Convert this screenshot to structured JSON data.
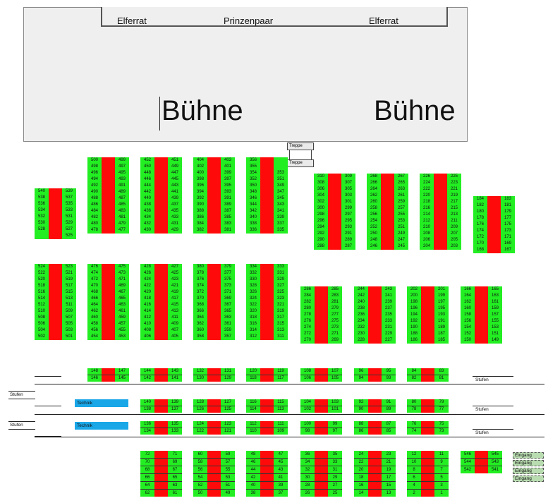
{
  "stage": {
    "elferrat_left": "Elferrat",
    "prinzenpaar": "Prinzenpaar",
    "elferrat_right": "Elferrat",
    "buehne_left": "Bühne",
    "buehne_right": "Bühne"
  },
  "stairs": [
    "Treppe",
    "Treppe"
  ],
  "labels": {
    "stufen": "Stufen",
    "technik": "Technik",
    "eingang": "Eingang"
  },
  "tables": [
    {
      "name": "500",
      "left": [
        500,
        498,
        496,
        494,
        492,
        490,
        488,
        486,
        484,
        482,
        480,
        478
      ],
      "right": [
        499,
        497,
        495,
        493,
        491,
        489,
        487,
        485,
        483,
        481,
        479,
        477
      ]
    },
    {
      "name": "452",
      "left": [
        452,
        450,
        448,
        446,
        444,
        442,
        440,
        438,
        436,
        434,
        432,
        430
      ],
      "right": [
        451,
        449,
        447,
        445,
        443,
        441,
        439,
        437,
        435,
        433,
        431,
        429
      ]
    },
    {
      "name": "404",
      "left": [
        404,
        402,
        400,
        398,
        396,
        394,
        392,
        390,
        388,
        386,
        384,
        382
      ],
      "right": [
        403,
        401,
        399,
        397,
        395,
        393,
        391,
        389,
        387,
        385,
        383,
        381
      ]
    },
    {
      "name": "356",
      "left": [
        356,
        355,
        354,
        352,
        350,
        348,
        346,
        344,
        342,
        340,
        338,
        336
      ],
      "right": [
        "",
        "",
        353,
        351,
        349,
        347,
        345,
        343,
        341,
        339,
        337,
        335
      ]
    },
    {
      "name": "540",
      "left": [
        540,
        538,
        536,
        534,
        532,
        530,
        528
      ],
      "right": [
        539,
        537,
        535,
        533,
        531,
        529,
        527,
        525
      ]
    },
    {
      "name": "310",
      "left": [
        310,
        308,
        306,
        304,
        302,
        300,
        298,
        296,
        294,
        292,
        290,
        288
      ],
      "right": [
        309,
        307,
        305,
        303,
        301,
        299,
        297,
        295,
        293,
        291,
        289,
        287
      ]
    },
    {
      "name": "268",
      "left": [
        268,
        266,
        264,
        262,
        260,
        258,
        256,
        254,
        252,
        250,
        248,
        246
      ],
      "right": [
        267,
        265,
        263,
        261,
        259,
        257,
        255,
        253,
        251,
        249,
        247,
        245
      ]
    },
    {
      "name": "226",
      "left": [
        226,
        224,
        222,
        220,
        218,
        216,
        214,
        212,
        210,
        208,
        206,
        204
      ],
      "right": [
        225,
        223,
        221,
        219,
        217,
        215,
        213,
        211,
        209,
        207,
        205,
        203
      ]
    },
    {
      "name": "184",
      "left": [
        184,
        182,
        180,
        178,
        176,
        174,
        172,
        170,
        168
      ],
      "right": [
        183,
        181,
        179,
        177,
        175,
        173,
        171,
        169,
        167
      ]
    },
    {
      "name": "524",
      "left": [
        524,
        522,
        520,
        518,
        516,
        514,
        512,
        510,
        508,
        506,
        504,
        502
      ],
      "right": [
        523,
        521,
        519,
        517,
        515,
        513,
        511,
        509,
        507,
        505,
        503,
        501
      ]
    },
    {
      "name": "476",
      "left": [
        476,
        474,
        472,
        470,
        468,
        466,
        464,
        462,
        460,
        458,
        456,
        454
      ],
      "right": [
        475,
        473,
        471,
        469,
        467,
        465,
        463,
        461,
        459,
        457,
        455,
        453
      ]
    },
    {
      "name": "428",
      "left": [
        428,
        426,
        424,
        422,
        420,
        418,
        416,
        414,
        412,
        410,
        408,
        406
      ],
      "right": [
        427,
        425,
        423,
        421,
        419,
        417,
        415,
        413,
        411,
        409,
        407,
        405
      ]
    },
    {
      "name": "380",
      "left": [
        380,
        378,
        376,
        374,
        372,
        370,
        368,
        366,
        364,
        362,
        360,
        358
      ],
      "right": [
        379,
        377,
        375,
        373,
        371,
        369,
        367,
        365,
        363,
        361,
        359,
        357
      ]
    },
    {
      "name": "334",
      "left": [
        334,
        332,
        330,
        328,
        326,
        324,
        322,
        320,
        318,
        316,
        314,
        312
      ],
      "right": [
        333,
        331,
        329,
        327,
        325,
        323,
        321,
        319,
        317,
        315,
        313,
        311
      ]
    },
    {
      "name": "286",
      "left": [
        286,
        284,
        282,
        280,
        278,
        276,
        274,
        272,
        270
      ],
      "right": [
        285,
        283,
        281,
        279,
        277,
        275,
        273,
        271,
        269
      ]
    },
    {
      "name": "244",
      "left": [
        244,
        242,
        240,
        238,
        236,
        234,
        232,
        230,
        228
      ],
      "right": [
        243,
        241,
        239,
        237,
        235,
        233,
        231,
        229,
        227
      ]
    },
    {
      "name": "202",
      "left": [
        202,
        200,
        198,
        196,
        194,
        192,
        190,
        188,
        186
      ],
      "right": [
        201,
        199,
        197,
        195,
        193,
        191,
        189,
        187,
        185
      ]
    },
    {
      "name": "166",
      "left": [
        166,
        164,
        162,
        160,
        158,
        156,
        154,
        152,
        150
      ],
      "right": [
        165,
        163,
        161,
        159,
        157,
        155,
        153,
        151,
        149
      ]
    },
    {
      "name": "148",
      "left": [
        148,
        146
      ],
      "right": [
        147,
        145
      ]
    },
    {
      "name": "144",
      "left": [
        144,
        142
      ],
      "right": [
        143,
        141
      ]
    },
    {
      "name": "132",
      "left": [
        132,
        130
      ],
      "right": [
        131,
        129
      ]
    },
    {
      "name": "120",
      "left": [
        120,
        118
      ],
      "right": [
        119,
        117
      ]
    },
    {
      "name": "108",
      "left": [
        108,
        106
      ],
      "right": [
        107,
        105
      ]
    },
    {
      "name": "96",
      "left": [
        96,
        94
      ],
      "right": [
        95,
        93
      ]
    },
    {
      "name": "84",
      "left": [
        84,
        82
      ],
      "right": [
        83,
        81
      ]
    },
    {
      "name": "140",
      "left": [
        140,
        138
      ],
      "right": [
        139,
        137
      ]
    },
    {
      "name": "128",
      "left": [
        128,
        126
      ],
      "right": [
        127,
        125
      ]
    },
    {
      "name": "116",
      "left": [
        116,
        114
      ],
      "right": [
        115,
        113
      ]
    },
    {
      "name": "104",
      "left": [
        104,
        102
      ],
      "right": [
        103,
        101
      ]
    },
    {
      "name": "92",
      "left": [
        92,
        90
      ],
      "right": [
        91,
        89
      ]
    },
    {
      "name": "80",
      "left": [
        80,
        78
      ],
      "right": [
        79,
        77
      ]
    },
    {
      "name": "136",
      "left": [
        136,
        134
      ],
      "right": [
        135,
        133
      ]
    },
    {
      "name": "124",
      "left": [
        124,
        122
      ],
      "right": [
        123,
        121
      ]
    },
    {
      "name": "112",
      "left": [
        112,
        110
      ],
      "right": [
        111,
        109
      ]
    },
    {
      "name": "100",
      "left": [
        100,
        98
      ],
      "right": [
        99,
        97
      ]
    },
    {
      "name": "88",
      "left": [
        88,
        86
      ],
      "right": [
        87,
        85
      ]
    },
    {
      "name": "76",
      "left": [
        76,
        74
      ],
      "right": [
        75,
        73
      ]
    },
    {
      "name": "72",
      "left": [
        72,
        70,
        68,
        66,
        64,
        62
      ],
      "right": [
        71,
        69,
        67,
        65,
        63,
        61
      ]
    },
    {
      "name": "60",
      "left": [
        60,
        58,
        56,
        54,
        52,
        50
      ],
      "right": [
        59,
        57,
        55,
        53,
        51,
        49
      ]
    },
    {
      "name": "48",
      "left": [
        48,
        46,
        44,
        42,
        40,
        38
      ],
      "right": [
        47,
        45,
        43,
        41,
        39,
        37
      ]
    },
    {
      "name": "36",
      "left": [
        36,
        34,
        32,
        30,
        28,
        26
      ],
      "right": [
        35,
        33,
        31,
        29,
        27,
        25
      ]
    },
    {
      "name": "24",
      "left": [
        24,
        22,
        20,
        18,
        16,
        14
      ],
      "right": [
        23,
        21,
        19,
        17,
        15,
        13
      ]
    },
    {
      "name": "12",
      "left": [
        12,
        10,
        8,
        6,
        4,
        2
      ],
      "right": [
        11,
        9,
        7,
        5,
        3,
        1
      ]
    },
    {
      "name": "546",
      "left": [
        546,
        544,
        542
      ],
      "right": [
        545,
        543,
        541
      ]
    }
  ]
}
